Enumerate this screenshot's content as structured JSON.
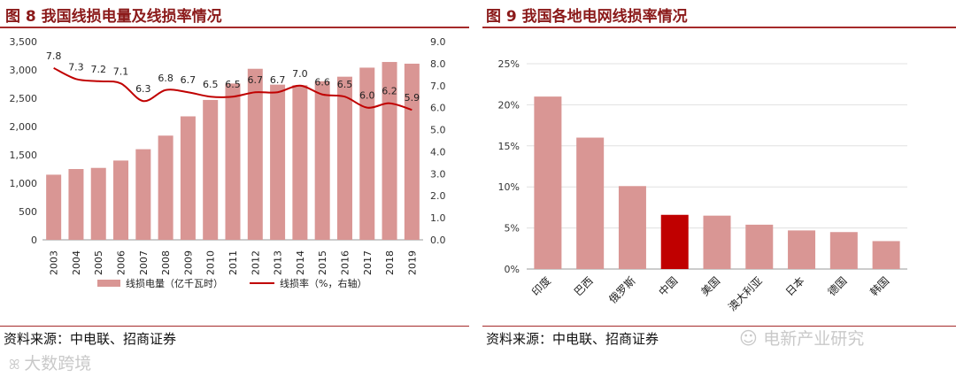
{
  "left": {
    "title": "图 8  我国线损电量及线损率情况",
    "source": "资料来源：中电联、招商证券"
  },
  "right": {
    "title": "图 9  我国各地电网线损率情况",
    "source": "资料来源：中电联、招商证券"
  },
  "watermark_left": "大数跨境",
  "watermark_right": "电新产业研究",
  "colors": {
    "bar": "#d99694",
    "highlight": "#c00000",
    "line": "#c00000",
    "title": "#8b1a1a",
    "rule": "#a52a2a"
  },
  "chart_data": [
    {
      "type": "bar",
      "categories": [
        "2003",
        "2004",
        "2005",
        "2006",
        "2007",
        "2008",
        "2009",
        "2010",
        "2011",
        "2012",
        "2013",
        "2014",
        "2015",
        "2016",
        "2017",
        "2018",
        "2019"
      ],
      "series": [
        {
          "name": "线损电量（亿千瓦时）",
          "type": "bar",
          "axis": "left",
          "values": [
            1150,
            1250,
            1270,
            1400,
            1600,
            1840,
            2180,
            2470,
            2760,
            3020,
            2740,
            2730,
            2800,
            2880,
            3040,
            3140,
            3110
          ]
        },
        {
          "name": "线损率（%，右轴）",
          "type": "line",
          "axis": "right",
          "values": [
            7.8,
            7.3,
            7.2,
            7.1,
            6.3,
            6.8,
            6.7,
            6.5,
            6.5,
            6.7,
            6.7,
            7.0,
            6.6,
            6.5,
            6.0,
            6.2,
            5.9
          ]
        }
      ],
      "ylim": [
        0,
        3500
      ],
      "yticks": [
        "0",
        "500",
        "1,000",
        "1,500",
        "2,000",
        "2,500",
        "3,000",
        "3,500"
      ],
      "y2lim": [
        0,
        9
      ],
      "y2ticks": [
        "0.0",
        "1.0",
        "2.0",
        "3.0",
        "4.0",
        "5.0",
        "6.0",
        "7.0",
        "8.0",
        "9.0"
      ],
      "legend_position": "bottom"
    },
    {
      "type": "bar",
      "categories": [
        "印度",
        "巴西",
        "俄罗斯",
        "中国",
        "美国",
        "澳大利亚",
        "日本",
        "德国",
        "韩国"
      ],
      "values": [
        0.21,
        0.16,
        0.101,
        0.066,
        0.065,
        0.054,
        0.047,
        0.045,
        0.034
      ],
      "highlight": "中国",
      "ylim": [
        0,
        0.25
      ],
      "yticks": [
        "0%",
        "5%",
        "10%",
        "15%",
        "20%",
        "25%"
      ]
    }
  ]
}
